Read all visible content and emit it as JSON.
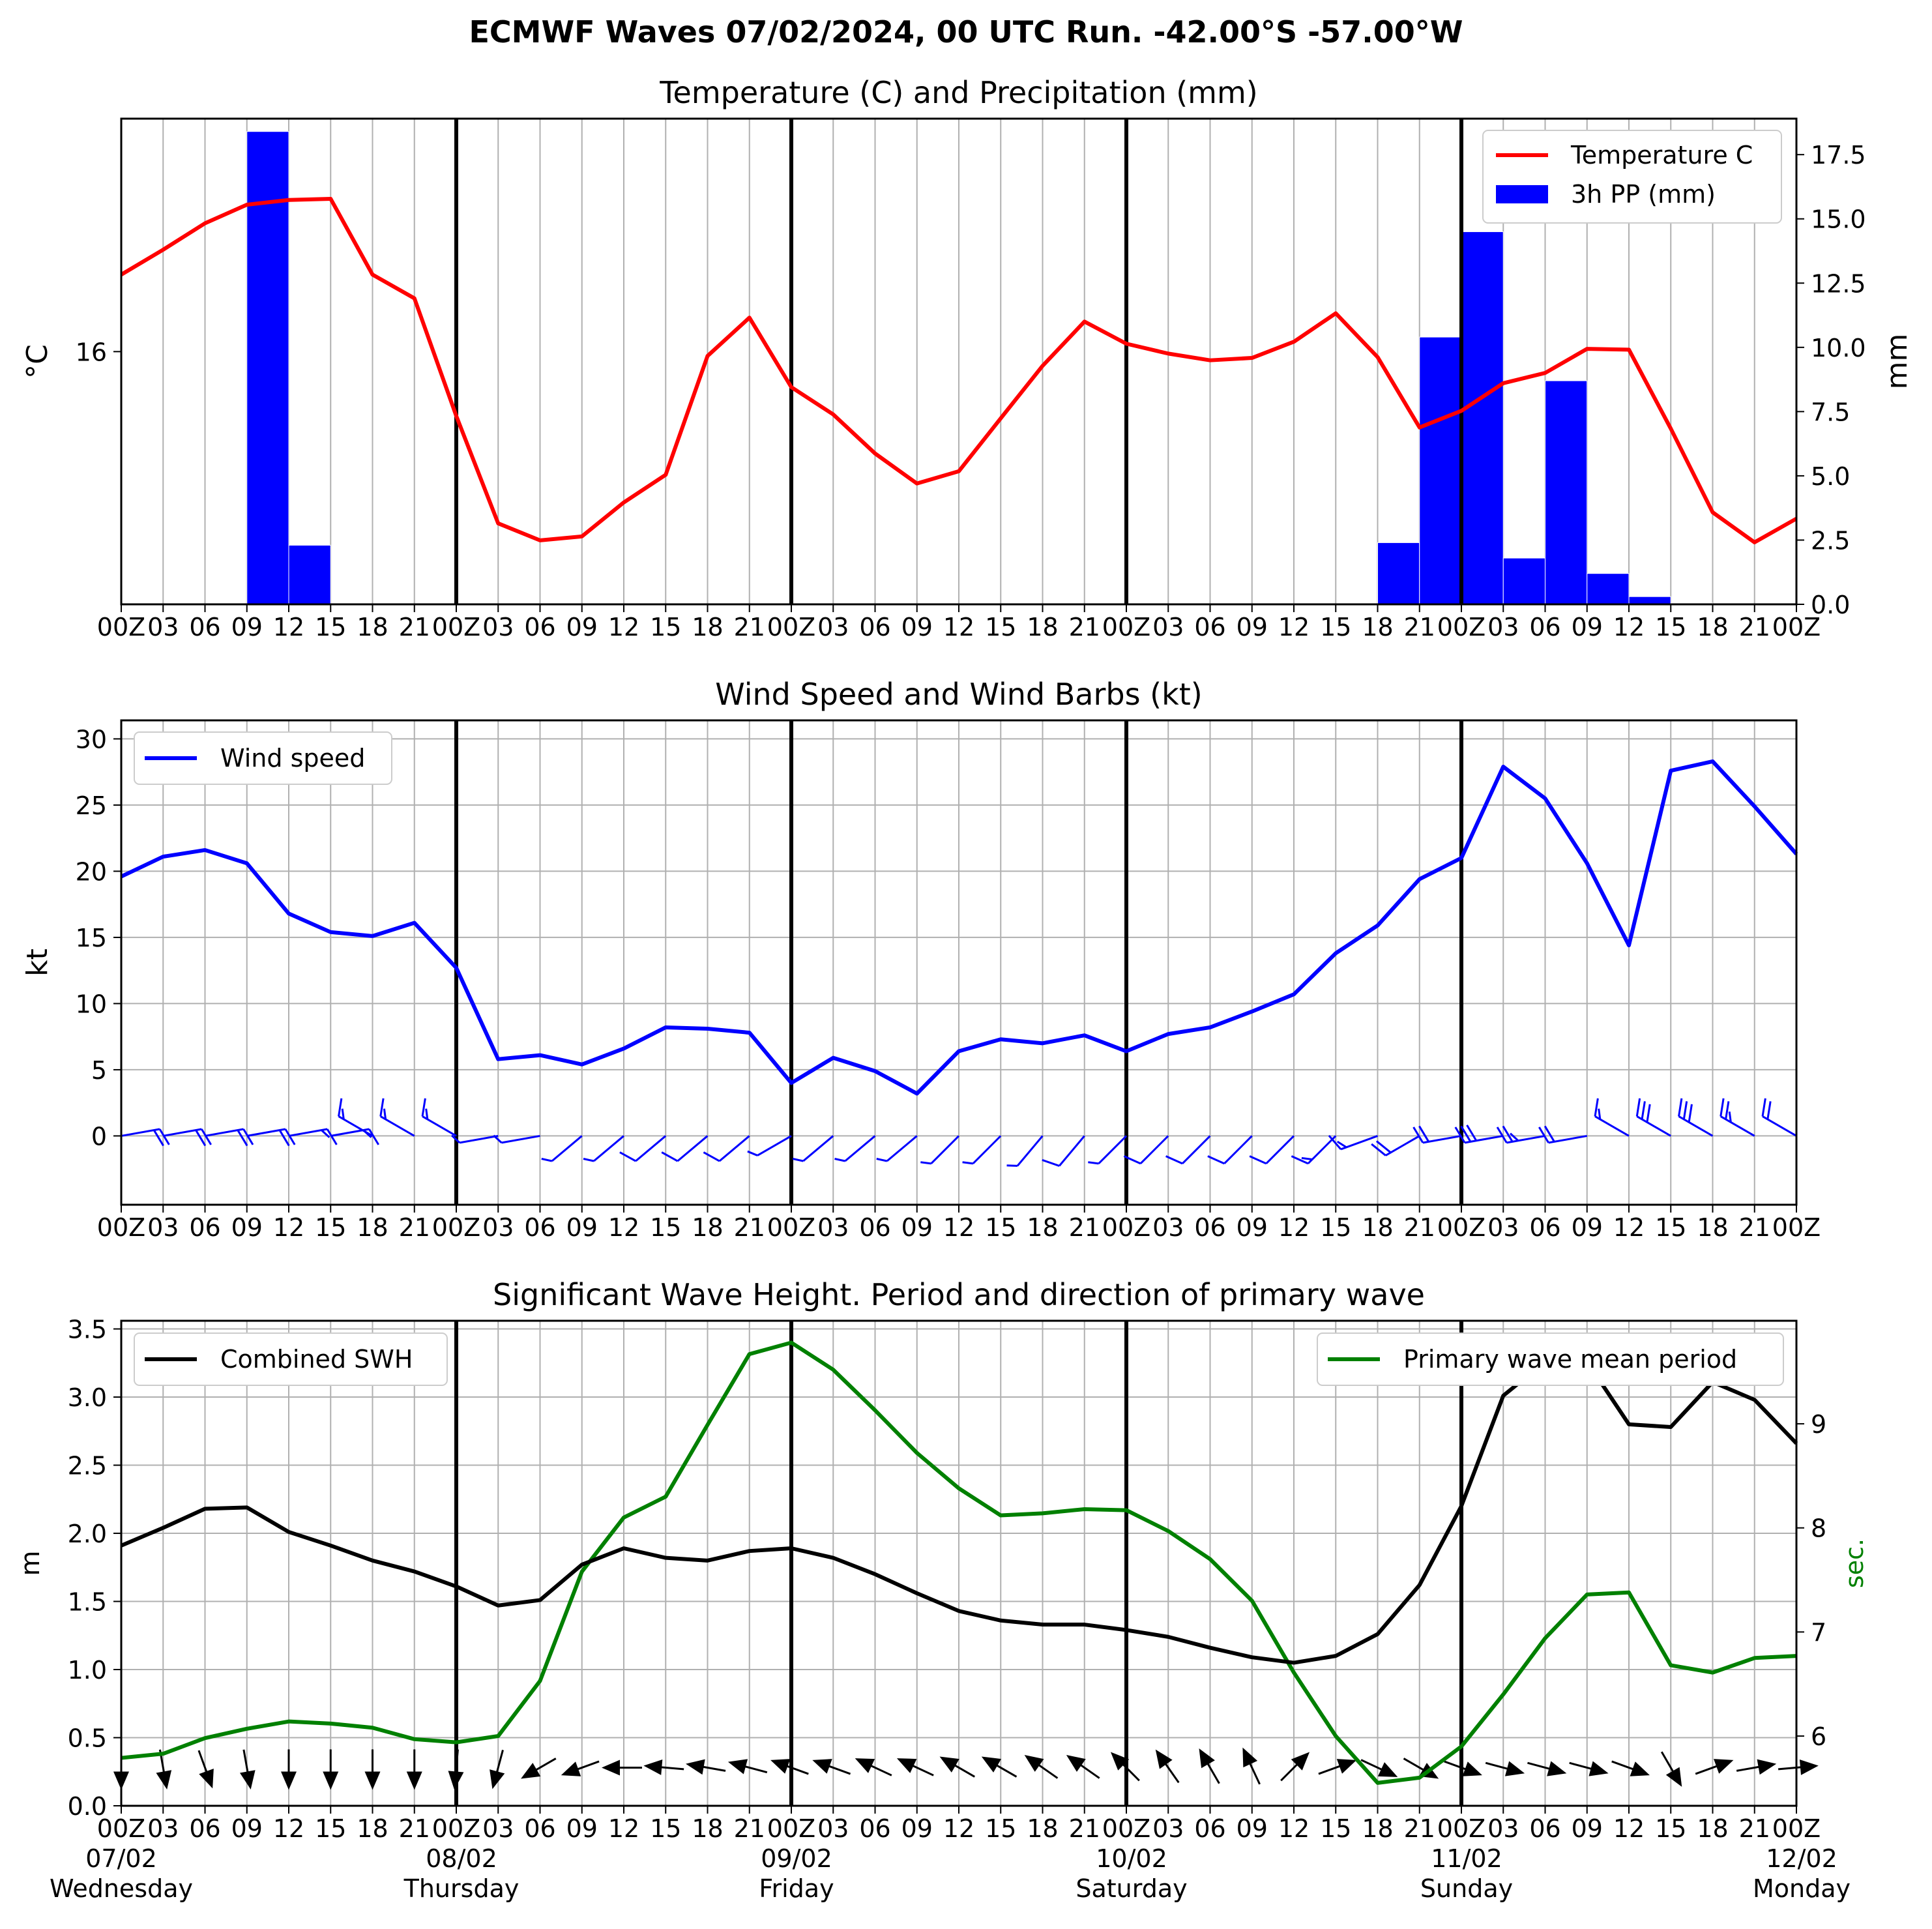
{
  "title": "ECMWF Waves 07/02/2024, 00 UTC Run. -42.00°S -57.00°W",
  "x_ticks_hours": [
    "00Z",
    "03",
    "06",
    "09",
    "12",
    "15",
    "18",
    "21",
    "00Z",
    "03",
    "06",
    "09",
    "12",
    "15",
    "18",
    "21",
    "00Z",
    "03",
    "06",
    "09",
    "12",
    "15",
    "18",
    "21",
    "00Z",
    "03",
    "06",
    "09",
    "12",
    "15",
    "18",
    "21",
    "00Z",
    "03",
    "06",
    "09",
    "12",
    "15",
    "18",
    "21",
    "00Z"
  ],
  "days": [
    {
      "date": "07/02",
      "weekday": "Wednesday"
    },
    {
      "date": "08/02",
      "weekday": "Thursday"
    },
    {
      "date": "09/02",
      "weekday": "Friday"
    },
    {
      "date": "10/02",
      "weekday": "Saturday"
    },
    {
      "date": "11/02",
      "weekday": "Sunday"
    },
    {
      "date": "12/02",
      "weekday": "Monday"
    }
  ],
  "colors": {
    "temperature": "#ff0000",
    "precip": "#0000ff",
    "wind": "#0000ff",
    "swh": "#000000",
    "period": "#008000",
    "grid": "#b0b0b0"
  },
  "chart_data": [
    {
      "type": "line",
      "title": "Temperature (C) and Precipitation (mm)",
      "ylabel": "°C",
      "y2label": "mm",
      "yticks": [
        16
      ],
      "ylim": [
        9.6,
        21.9
      ],
      "y2ticks": [
        "0.0",
        "2.5",
        "5.0",
        "7.5",
        "10.0",
        "12.5",
        "15.0",
        "17.5"
      ],
      "y2lim": [
        0,
        18.9
      ],
      "x_hours": [
        0,
        3,
        6,
        9,
        12,
        15,
        18,
        21,
        24,
        27,
        30,
        33,
        36,
        39,
        42,
        45,
        48,
        51,
        54,
        57,
        60,
        63,
        66,
        69,
        72,
        75,
        78,
        81,
        84,
        87,
        90,
        93,
        96,
        99,
        102,
        105,
        108,
        111,
        114,
        117,
        120
      ],
      "series": [
        {
          "name": "Temperature C",
          "kind": "line",
          "values": [
            17.95,
            18.58,
            19.25,
            19.72,
            19.84,
            19.87,
            17.95,
            17.35,
            14.37,
            11.65,
            11.22,
            11.32,
            12.18,
            12.88,
            15.89,
            16.86,
            15.1,
            14.41,
            13.42,
            12.66,
            12.97,
            14.31,
            15.64,
            16.76,
            16.2,
            15.95,
            15.78,
            15.84,
            16.25,
            16.97,
            15.86,
            14.08,
            14.5,
            15.2,
            15.46,
            16.07,
            16.05,
            14.05,
            11.93,
            11.17,
            11.77
          ]
        },
        {
          "name": "3h PP (mm)",
          "kind": "bar",
          "values": [
            0,
            0,
            0,
            18.4,
            2.3,
            0,
            0,
            0,
            0,
            0,
            0,
            0,
            0,
            0,
            0,
            0,
            0,
            0,
            0,
            0,
            0,
            0,
            0,
            0,
            0,
            0,
            0,
            0,
            0,
            0,
            2.4,
            10.4,
            14.5,
            1.8,
            8.7,
            1.2,
            0.3,
            0.05,
            0,
            0
          ]
        }
      ],
      "legend": "top-right"
    },
    {
      "type": "line",
      "title": "Wind Speed and Wind Barbs (kt)",
      "ylabel": "kt",
      "yticks": [
        0,
        5,
        10,
        15,
        20,
        25,
        30
      ],
      "ylim": [
        -5.2,
        31.4
      ],
      "x_hours": [
        0,
        3,
        6,
        9,
        12,
        15,
        18,
        21,
        24,
        27,
        30,
        33,
        36,
        39,
        42,
        45,
        48,
        51,
        54,
        57,
        60,
        63,
        66,
        69,
        72,
        75,
        78,
        81,
        84,
        87,
        90,
        93,
        96,
        99,
        102,
        105,
        108,
        111,
        114,
        117,
        120
      ],
      "series": [
        {
          "name": "Wind speed",
          "values": [
            19.6,
            21.1,
            21.6,
            20.6,
            16.8,
            15.4,
            15.1,
            16.1,
            12.7,
            5.8,
            6.1,
            5.4,
            6.6,
            8.2,
            8.1,
            7.8,
            4,
            5.9,
            4.9,
            3.2,
            6.4,
            7.3,
            7.0,
            7.6,
            6.4,
            7.7,
            8.2,
            9.4,
            10.7,
            13.8,
            15.9,
            19.4,
            21.0,
            27.9,
            25.5,
            20.6,
            14.4,
            27.6,
            28.3,
            24.9,
            21.3
          ]
        }
      ],
      "barbs_dir_deg": [
        80,
        80,
        80,
        80,
        80,
        80,
        300,
        300,
        300,
        260,
        260,
        230,
        230,
        230,
        230,
        230,
        240,
        230,
        230,
        230,
        225,
        225,
        220,
        220,
        225,
        225,
        225,
        225,
        225,
        225,
        250,
        240,
        260,
        260,
        260,
        260,
        300,
        300,
        300,
        300,
        300
      ],
      "legend": "top-left"
    },
    {
      "type": "line",
      "title": "Significant Wave Height. Period and direction of primary wave",
      "ylabel": "m",
      "y2label": "sec.",
      "yticks": [
        "0.0",
        "0.5",
        "1.0",
        "1.5",
        "2.0",
        "2.5",
        "3.0",
        "3.5"
      ],
      "ylim": [
        0,
        3.56
      ],
      "y2ticks": [
        "6",
        "7",
        "8",
        "9"
      ],
      "y2lim": [
        5.33,
        9.99
      ],
      "x_hours": [
        0,
        3,
        6,
        9,
        12,
        15,
        18,
        21,
        24,
        27,
        30,
        33,
        36,
        39,
        42,
        45,
        48,
        51,
        54,
        57,
        60,
        63,
        66,
        69,
        72,
        75,
        78,
        81,
        84,
        87,
        90,
        93,
        96,
        99,
        102,
        105,
        108,
        111,
        114,
        117,
        120
      ],
      "series": [
        {
          "name": "Combined SWH",
          "axis": "left",
          "values": [
            1.91,
            2.04,
            2.18,
            2.19,
            2.01,
            1.91,
            1.8,
            1.72,
            1.61,
            1.47,
            1.51,
            1.77,
            1.89,
            1.82,
            1.8,
            1.87,
            1.89,
            1.82,
            1.7,
            1.56,
            1.43,
            1.36,
            1.33,
            1.33,
            1.29,
            1.24,
            1.16,
            1.09,
            1.05,
            1.1,
            1.26,
            1.62,
            2.2,
            3.01,
            3.26,
            3.26,
            2.8,
            2.78,
            3.11,
            2.98,
            2.66
          ]
        },
        {
          "name": "Primary wave mean period",
          "axis": "right",
          "values": [
            5.79,
            5.83,
            5.98,
            6.07,
            6.14,
            6.12,
            6.08,
            5.97,
            5.94,
            6.0,
            6.53,
            7.58,
            8.1,
            8.3,
            8.99,
            9.67,
            9.78,
            9.52,
            9.13,
            8.72,
            8.38,
            8.12,
            8.14,
            8.18,
            8.17,
            7.97,
            7.7,
            7.3,
            6.61,
            6.0,
            5.55,
            5.6,
            5.9,
            6.4,
            6.94,
            7.36,
            7.38,
            6.68,
            6.61,
            6.75,
            6.77
          ]
        }
      ],
      "wave_dir_deg": [
        0,
        10,
        20,
        10,
        0,
        0,
        0,
        0,
        355,
        345,
        300,
        290,
        270,
        265,
        260,
        255,
        250,
        250,
        245,
        245,
        240,
        240,
        235,
        235,
        225,
        215,
        210,
        205,
        135,
        110,
        65,
        60,
        70,
        75,
        75,
        75,
        70,
        30,
        110,
        100,
        95
      ],
      "legends": [
        "top-left",
        "top-right"
      ]
    }
  ]
}
